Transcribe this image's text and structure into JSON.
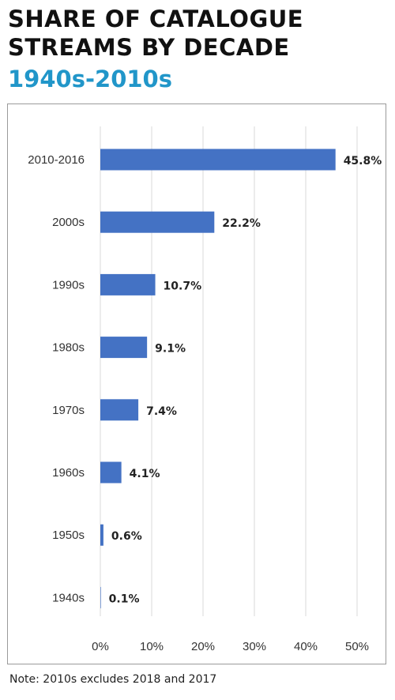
{
  "title": "SHARE OF CATALOGUE STREAMS BY DECADE",
  "subtitle": "1940s-2010s",
  "note": "Note: 2010s excludes 2018 and 2017",
  "colors": {
    "bar": "#4472c4",
    "subtitle": "#2196c9",
    "grid": "#d9d9d9"
  },
  "chart_data": {
    "type": "bar",
    "orientation": "horizontal",
    "categories": [
      "2010-2016",
      "2000s",
      "1990s",
      "1980s",
      "1970s",
      "1960s",
      "1950s",
      "1940s"
    ],
    "values": [
      45.8,
      22.2,
      10.7,
      9.1,
      7.4,
      4.1,
      0.6,
      0.1
    ],
    "value_labels": [
      "45.8%",
      "22.2%",
      "10.7%",
      "9.1%",
      "7.4%",
      "4.1%",
      "0.6%",
      "0.1%"
    ],
    "xlim": [
      0,
      50
    ],
    "x_ticks": [
      0,
      10,
      20,
      30,
      40,
      50
    ],
    "x_tick_labels": [
      "0%",
      "10%",
      "20%",
      "30%",
      "40%",
      "50%"
    ],
    "grid": true,
    "legend": false
  }
}
